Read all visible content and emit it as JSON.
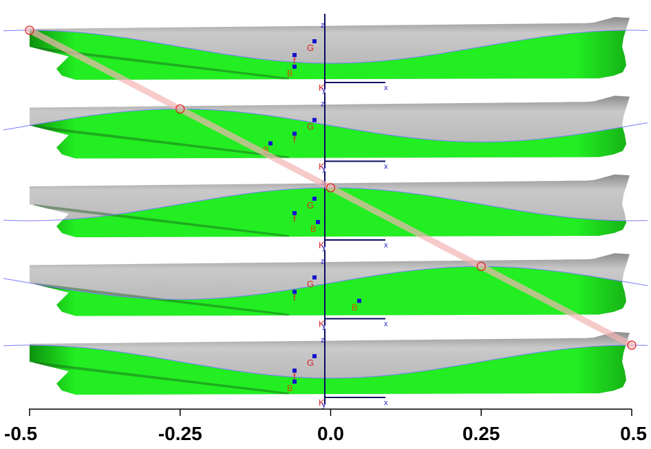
{
  "diagram": {
    "x_axis": {
      "ticks": [
        {
          "value": -0.5,
          "label": "-0.5"
        },
        {
          "value": -0.25,
          "label": "-0.25"
        },
        {
          "value": 0.0,
          "label": "0.0"
        },
        {
          "value": 0.25,
          "label": "0.25"
        },
        {
          "value": 0.5,
          "label": "0.5"
        }
      ]
    },
    "panels": [
      {
        "crest_position": -0.5,
        "labels": {
          "G": "G",
          "f": "f",
          "B": "B",
          "K": "K",
          "y": "y",
          "z": "z",
          "x": "x"
        }
      },
      {
        "crest_position": -0.25,
        "labels": {
          "G": "G",
          "f": "f",
          "B": "B",
          "K": "K",
          "y": "y",
          "z": "z",
          "x": "x"
        }
      },
      {
        "crest_position": 0.0,
        "labels": {
          "G": "G",
          "f": "f",
          "B": "B",
          "K": "K",
          "y": "y",
          "z": "z",
          "x": "x"
        }
      },
      {
        "crest_position": 0.25,
        "labels": {
          "G": "G",
          "f": "f",
          "B": "B",
          "K": "K",
          "y": "y",
          "z": "z",
          "x": "x"
        }
      },
      {
        "crest_position": 0.5,
        "labels": {
          "G": "G",
          "f": "f",
          "B": "B",
          "K": "K",
          "y": "y",
          "z": "z",
          "x": "x"
        }
      }
    ],
    "colors": {
      "hull_above": "#b8b8b8",
      "hull_below": "#22ee22",
      "wave_line": "#7a7aff",
      "marker": "#dd2222",
      "point": "#1414cc",
      "label_red": "#dd2222",
      "label_blue": "#1a1acc",
      "label_B": "#cc5500",
      "trend_band": "#f4b4b4"
    }
  }
}
